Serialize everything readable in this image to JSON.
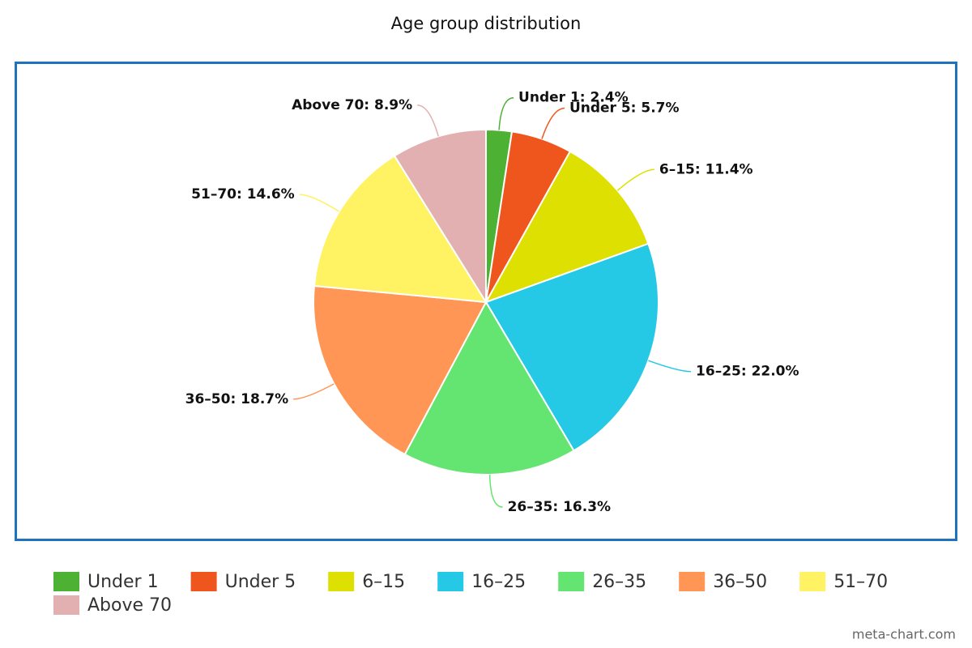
{
  "chart_data": {
    "type": "pie",
    "title": "Age group distribution",
    "categories": [
      "Under 1",
      "Under 5",
      "6–15",
      "16–25",
      "26–35",
      "36–50",
      "51–70",
      "Above 70"
    ],
    "values": [
      2.4,
      5.7,
      11.4,
      22.0,
      16.3,
      18.7,
      14.6,
      8.9
    ],
    "value_labels": [
      "Under 1: 2.4%",
      "Under 5: 5.7%",
      "6–15: 11.4%",
      "16–25: 22.0%",
      "26–35: 16.3%",
      "36–50: 18.7%",
      "51–70: 14.6%",
      "Above 70: 8.9%"
    ],
    "colors": [
      "#4db234",
      "#ee561d",
      "#dde000",
      "#25c9e6",
      "#64e572",
      "#ff9655",
      "#fff263",
      "#e2b0b0"
    ],
    "legend": "bottom",
    "source": "meta-chart.com"
  }
}
